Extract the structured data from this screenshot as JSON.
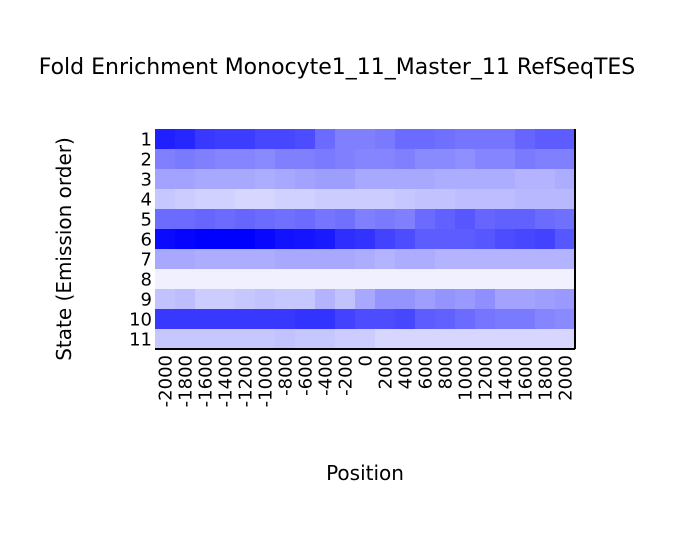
{
  "chart_data": {
    "type": "heatmap",
    "title": "Fold Enrichment Monocyte1_11_Master_11 RefSeqTES",
    "xlabel": "Position",
    "ylabel": "State (Emission order)",
    "rows": [
      "1",
      "2",
      "3",
      "4",
      "5",
      "6",
      "7",
      "8",
      "9",
      "10",
      "11"
    ],
    "columns": [
      "-2000",
      "-1800",
      "-1600",
      "-1400",
      "-1200",
      "-1000",
      "-800",
      "-600",
      "-400",
      "-200",
      "0",
      "200",
      "400",
      "600",
      "800",
      "1000",
      "1200",
      "1400",
      "1600",
      "1800",
      "2000"
    ],
    "values": [
      [
        0.88,
        0.85,
        0.78,
        0.76,
        0.76,
        0.72,
        0.72,
        0.7,
        0.58,
        0.5,
        0.5,
        0.52,
        0.58,
        0.58,
        0.56,
        0.54,
        0.54,
        0.54,
        0.6,
        0.64,
        0.64
      ],
      [
        0.5,
        0.52,
        0.5,
        0.48,
        0.48,
        0.46,
        0.5,
        0.5,
        0.52,
        0.5,
        0.48,
        0.48,
        0.5,
        0.46,
        0.46,
        0.44,
        0.48,
        0.48,
        0.52,
        0.5,
        0.5
      ],
      [
        0.36,
        0.36,
        0.34,
        0.34,
        0.34,
        0.32,
        0.34,
        0.36,
        0.38,
        0.38,
        0.34,
        0.34,
        0.34,
        0.34,
        0.32,
        0.32,
        0.32,
        0.32,
        0.3,
        0.3,
        0.32
      ],
      [
        0.22,
        0.2,
        0.18,
        0.18,
        0.16,
        0.16,
        0.18,
        0.18,
        0.2,
        0.2,
        0.2,
        0.2,
        0.22,
        0.24,
        0.24,
        0.26,
        0.26,
        0.26,
        0.28,
        0.28,
        0.28
      ],
      [
        0.58,
        0.58,
        0.6,
        0.58,
        0.6,
        0.58,
        0.56,
        0.58,
        0.54,
        0.56,
        0.5,
        0.52,
        0.5,
        0.58,
        0.62,
        0.66,
        0.6,
        0.62,
        0.62,
        0.58,
        0.56
      ],
      [
        0.96,
        0.98,
        1.0,
        1.0,
        1.0,
        0.97,
        0.93,
        0.92,
        0.9,
        0.82,
        0.8,
        0.74,
        0.7,
        0.64,
        0.64,
        0.64,
        0.66,
        0.7,
        0.72,
        0.74,
        0.66
      ],
      [
        0.34,
        0.34,
        0.32,
        0.32,
        0.32,
        0.32,
        0.34,
        0.34,
        0.34,
        0.34,
        0.32,
        0.3,
        0.32,
        0.32,
        0.3,
        0.3,
        0.3,
        0.3,
        0.3,
        0.3,
        0.3
      ],
      [
        0.06,
        0.06,
        0.06,
        0.06,
        0.06,
        0.06,
        0.06,
        0.06,
        0.06,
        0.06,
        0.06,
        0.06,
        0.06,
        0.06,
        0.06,
        0.06,
        0.06,
        0.06,
        0.06,
        0.06,
        0.06
      ],
      [
        0.24,
        0.26,
        0.2,
        0.2,
        0.22,
        0.24,
        0.22,
        0.22,
        0.3,
        0.24,
        0.34,
        0.42,
        0.42,
        0.38,
        0.42,
        0.4,
        0.44,
        0.36,
        0.36,
        0.38,
        0.4
      ],
      [
        0.78,
        0.78,
        0.78,
        0.78,
        0.78,
        0.78,
        0.78,
        0.8,
        0.8,
        0.74,
        0.7,
        0.7,
        0.72,
        0.64,
        0.62,
        0.58,
        0.54,
        0.52,
        0.52,
        0.48,
        0.46
      ],
      [
        0.22,
        0.22,
        0.22,
        0.22,
        0.22,
        0.22,
        0.24,
        0.22,
        0.22,
        0.2,
        0.2,
        0.16,
        0.16,
        0.16,
        0.16,
        0.16,
        0.16,
        0.16,
        0.16,
        0.16,
        0.16
      ]
    ],
    "color_low": "#ffffff",
    "color_high": "#0000ff",
    "grid": false,
    "legend": "none"
  }
}
